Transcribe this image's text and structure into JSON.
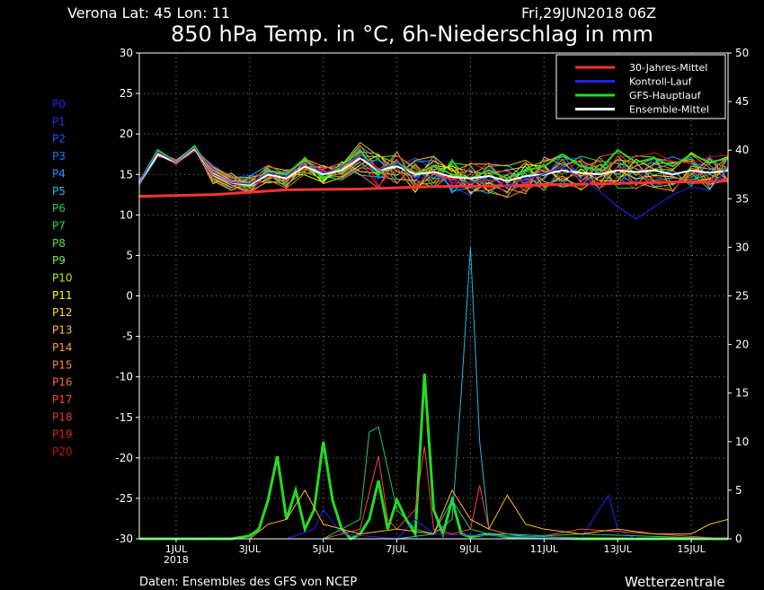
{
  "header": {
    "location": "Verona   Lat: 45 Lon: 11",
    "date": "Fri,29JUN2018 06Z",
    "title": "850 hPa Temp. in °C, 6h-Niederschlag in mm"
  },
  "footer": {
    "source": "Daten: Ensembles des GFS von NCEP",
    "brand": "Wetterzentrale"
  },
  "members": [
    {
      "label": "P0",
      "color": "#2222ff"
    },
    {
      "label": "P1",
      "color": "#2233ff"
    },
    {
      "label": "P2",
      "color": "#2255ff"
    },
    {
      "label": "P3",
      "color": "#2277ff"
    },
    {
      "label": "P4",
      "color": "#2299ff"
    },
    {
      "label": "P5",
      "color": "#22bbdd"
    },
    {
      "label": "P6",
      "color": "#22cc66"
    },
    {
      "label": "P7",
      "color": "#22dd44"
    },
    {
      "label": "P8",
      "color": "#44ee22"
    },
    {
      "label": "P9",
      "color": "#77ee22"
    },
    {
      "label": "P10",
      "color": "#aaee22"
    },
    {
      "label": "P11",
      "color": "#ffff00"
    },
    {
      "label": "P12",
      "color": "#ffdd22"
    },
    {
      "label": "P13",
      "color": "#ffbb22"
    },
    {
      "label": "P14",
      "color": "#ff9922"
    },
    {
      "label": "P15",
      "color": "#ff8833"
    },
    {
      "label": "P16",
      "color": "#ff6633"
    },
    {
      "label": "P17",
      "color": "#ff4433"
    },
    {
      "label": "P18",
      "color": "#ee3333"
    },
    {
      "label": "P19",
      "color": "#dd2222"
    },
    {
      "label": "P20",
      "color": "#cc1111"
    }
  ],
  "chart_data": {
    "type": "line",
    "x_ticks": [
      "1JUL\n2018",
      "3JUL",
      "5JUL",
      "7JUL",
      "9JUL",
      "11JUL",
      "13JUL",
      "15JUL"
    ],
    "x_range_days": [
      0,
      16
    ],
    "y_left": {
      "ylim": [
        -30,
        30
      ],
      "ticks": [
        30,
        25,
        20,
        15,
        10,
        5,
        0,
        -5,
        -10,
        -15,
        -20,
        -25,
        -30
      ]
    },
    "y_right": {
      "ylim": [
        0,
        50
      ],
      "ticks": [
        50,
        45,
        40,
        35,
        30,
        25,
        20,
        15,
        10,
        5,
        0
      ]
    },
    "grid": true,
    "legend_position": "top-right",
    "legend": [
      {
        "name": "30-Jahres-Mittel",
        "color": "#ff3333"
      },
      {
        "name": "Kontroll-Lauf",
        "color": "#2222ff"
      },
      {
        "name": "GFS-Hauptlauf",
        "color": "#22dd22"
      },
      {
        "name": "Ensemble-Mittel",
        "color": "#ffffff"
      }
    ],
    "series": [
      {
        "name": "30-Jahres-Mittel",
        "color": "#ff3333",
        "axis": "left",
        "x": [
          0,
          2,
          4,
          6,
          8,
          10,
          12,
          14,
          16
        ],
        "y": [
          12.3,
          12.5,
          13.1,
          13.2,
          13.5,
          13.6,
          13.8,
          14.0,
          14.2
        ]
      },
      {
        "name": "GFS-Hauptlauf",
        "color": "#22dd22",
        "axis": "left",
        "x": [
          0,
          0.5,
          1,
          1.5,
          2,
          2.5,
          3,
          3.5,
          4,
          4.5,
          5,
          5.5,
          6,
          6.5,
          7,
          7.5,
          8,
          8.5,
          9,
          9.5,
          10,
          10.5,
          11,
          11.5,
          12,
          12.5,
          13,
          13.5,
          14,
          14.5,
          15,
          15.5,
          16
        ],
        "y": [
          14,
          18,
          16.5,
          18.5,
          15,
          14,
          13.5,
          15.5,
          15,
          17,
          14.5,
          16,
          18,
          15,
          16.5,
          15,
          16,
          15,
          14.5,
          15.5,
          14.5,
          15.5,
          16,
          17.5,
          16,
          15.5,
          18,
          16.5,
          17,
          16,
          17.5,
          16.5,
          17
        ]
      },
      {
        "name": "Ensemble-Mittel",
        "color": "#ffffff",
        "axis": "left",
        "x": [
          0,
          0.5,
          1,
          1.5,
          2,
          2.5,
          3,
          3.5,
          4,
          4.5,
          5,
          5.5,
          6,
          6.5,
          7,
          7.5,
          8,
          8.5,
          9,
          9.5,
          10,
          10.5,
          11,
          11.5,
          12,
          12.5,
          13,
          13.5,
          14,
          14.5,
          15,
          15.5,
          16
        ],
        "y": [
          14,
          17.5,
          16.5,
          18.2,
          15,
          14,
          13.7,
          15,
          14.5,
          16,
          15,
          15.5,
          17,
          15.5,
          16,
          15,
          15.3,
          14.7,
          14.5,
          14.8,
          14.2,
          14.8,
          15,
          15.5,
          15.2,
          15,
          15.5,
          15.3,
          15.5,
          15,
          15.5,
          15.2,
          15.5
        ]
      },
      {
        "name": "Kontroll-Lauf",
        "color": "#2222ff",
        "axis": "left",
        "x": [
          0,
          0.5,
          1,
          1.5,
          2,
          2.5,
          3,
          3.5,
          4,
          4.5,
          5,
          5.5,
          6,
          6.5,
          7,
          7.5,
          8,
          8.5,
          9,
          9.5,
          10,
          10.5,
          11,
          11.5,
          12,
          12.5,
          13,
          13.5,
          14,
          14.5,
          15,
          15.5,
          16
        ],
        "y": [
          14,
          17.8,
          16.5,
          18.3,
          15,
          14,
          13.8,
          15.2,
          14.8,
          16.5,
          15.2,
          16,
          17.5,
          15.5,
          16.5,
          14.5,
          14.8,
          14.2,
          14,
          14.5,
          13.5,
          14.5,
          15,
          16,
          14.5,
          13,
          11,
          9.5,
          11,
          12.5,
          13.5,
          13,
          16
        ]
      }
    ],
    "precip_series": [
      {
        "name": "GFS-Hauptlauf",
        "color": "#22dd22",
        "axis": "right",
        "x": [
          0,
          2.5,
          3,
          3.25,
          3.5,
          3.75,
          4,
          4.25,
          4.5,
          4.75,
          5,
          5.25,
          5.5,
          5.75,
          6,
          6.25,
          6.5,
          6.75,
          7,
          7.25,
          7.5,
          7.75,
          8,
          8.25,
          8.5,
          8.75,
          9,
          9.5,
          10,
          11,
          12,
          13,
          14,
          15,
          16
        ],
        "y": [
          0,
          0,
          0.3,
          1,
          4,
          8.5,
          2,
          5,
          1,
          3,
          10,
          4,
          1,
          0,
          0.5,
          2,
          6,
          1,
          4,
          2,
          0.5,
          17,
          3,
          0.5,
          4,
          0.5,
          0.2,
          0.5,
          0.2,
          0.1,
          0,
          0,
          0,
          0,
          0
        ]
      },
      {
        "name": "P5",
        "color": "#22bbdd",
        "axis": "right",
        "x": [
          0,
          7,
          8,
          8.5,
          8.75,
          9,
          9.25,
          9.5,
          10,
          11,
          12,
          16
        ],
        "y": [
          0,
          0,
          0.5,
          2,
          15,
          30,
          10,
          1,
          0.5,
          0,
          0,
          0
        ]
      },
      {
        "name": "Kontroll-Lauf",
        "color": "#2222ff",
        "axis": "right",
        "x": [
          0,
          4,
          4.75,
          5,
          5.5,
          7,
          7.5,
          8,
          12,
          12.75,
          13,
          13.5,
          16
        ],
        "y": [
          0,
          0,
          1,
          3,
          0.5,
          0,
          2,
          0.5,
          0,
          4.5,
          1,
          0,
          0
        ]
      },
      {
        "name": "P17",
        "color": "#ff4433",
        "axis": "right",
        "x": [
          0,
          5,
          6,
          6.5,
          6.75,
          7,
          7.5,
          7.75,
          8,
          8.5,
          9,
          9.25,
          9.5,
          10,
          11,
          12,
          16
        ],
        "y": [
          0,
          0,
          1,
          8.5,
          2,
          1,
          3,
          9.5,
          1,
          0.5,
          1,
          5.5,
          1,
          0.5,
          0.3,
          1,
          0
        ]
      },
      {
        "name": "P6",
        "color": "#22cc66",
        "axis": "right",
        "x": [
          0,
          5,
          6,
          6.25,
          6.5,
          7,
          7.5,
          8,
          8.5,
          9,
          9.5,
          10,
          11,
          12,
          16
        ],
        "y": [
          0,
          0,
          2,
          11,
          11.5,
          3,
          1,
          0.5,
          4,
          1,
          0.5,
          0.5,
          0.3,
          0.5,
          0
        ]
      },
      {
        "name": "P13",
        "color": "#ffbb22",
        "axis": "right",
        "x": [
          0,
          3,
          3.5,
          4,
          4.5,
          5,
          6,
          7,
          8,
          8.5,
          9,
          9.5,
          10,
          10.5,
          11,
          12,
          13,
          14,
          15,
          15.5,
          16
        ],
        "y": [
          0,
          0,
          1.5,
          2,
          5,
          1.5,
          0.5,
          1,
          0.5,
          5,
          2,
          1,
          4.5,
          1.5,
          1,
          0.5,
          1,
          0.5,
          0.5,
          1.5,
          2
        ]
      }
    ]
  }
}
